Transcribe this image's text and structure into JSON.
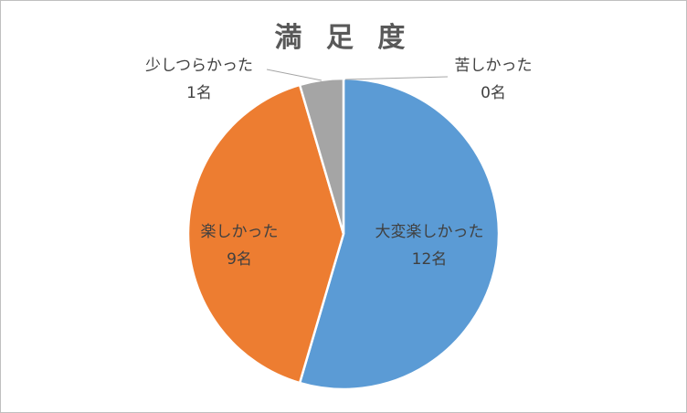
{
  "chart_data": {
    "type": "pie",
    "title": "満 足 度",
    "unit": "名",
    "legend": "none",
    "slices": [
      {
        "label": "大変楽しかった",
        "value": 12,
        "color": "#5b9bd5"
      },
      {
        "label": "楽しかった",
        "value": 9,
        "color": "#ed7d31"
      },
      {
        "label": "少しつらかった",
        "value": 1,
        "color": "#a5a5a5"
      },
      {
        "label": "苦しかった",
        "value": 0,
        "color": "#ffc000"
      }
    ]
  }
}
